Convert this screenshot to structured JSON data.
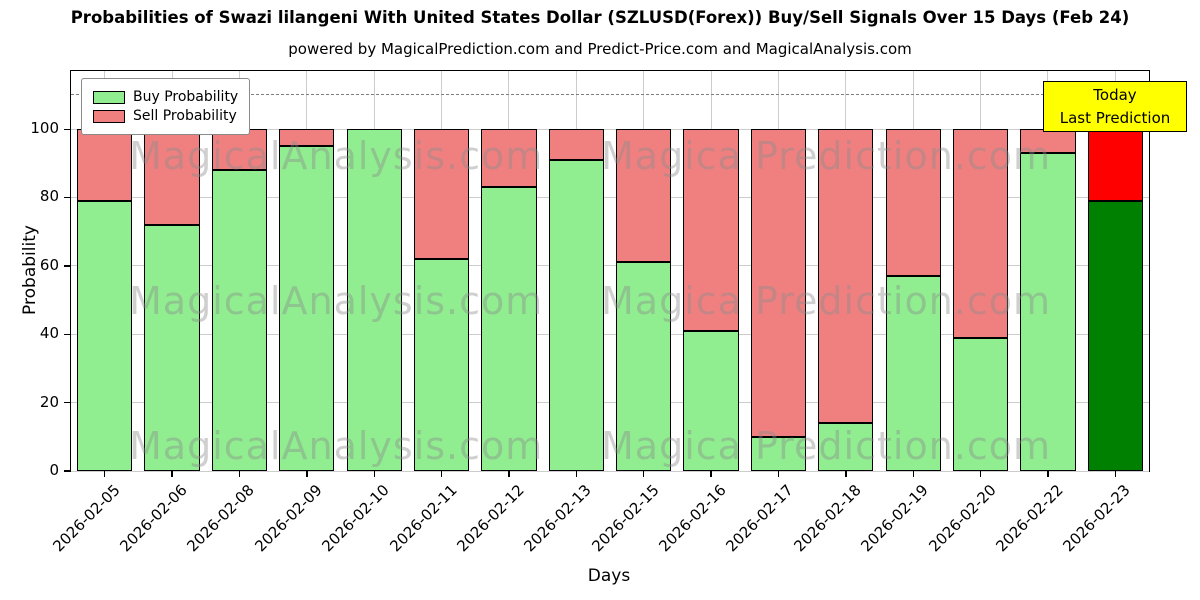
{
  "title": "Probabilities of Swazi lilangeni With United States Dollar (SZLUSD(Forex)) Buy/Sell Signals Over 15 Days (Feb 24)",
  "subtitle": "powered by MagicalPrediction.com and Predict-Price.com and MagicalAnalysis.com",
  "watermarks": {
    "left": "MagicalAnalysis.com",
    "right": "Magica Prediction.com"
  },
  "today_label": {
    "line1": "Today",
    "line2": "Last Prediction",
    "bg": "#ffff00"
  },
  "chart_data": {
    "type": "bar",
    "stacked": true,
    "title": "Probabilities of Swazi lilangeni With United States Dollar (SZLUSD(Forex)) Buy/Sell Signals Over 15 Days (Feb 24)",
    "xlabel": "Days",
    "ylabel": "Probability",
    "ylim": [
      0,
      117
    ],
    "yticks": [
      0,
      20,
      40,
      60,
      80,
      100
    ],
    "dashed_line_y": 110,
    "grid": true,
    "legend_position": "upper left",
    "bar_edge_color": "#000000",
    "categories": [
      "2026-02-05",
      "2026-02-06",
      "2026-02-08",
      "2026-02-09",
      "2026-02-10",
      "2026-02-11",
      "2026-02-12",
      "2026-02-13",
      "2026-02-15",
      "2026-02-16",
      "2026-02-17",
      "2026-02-18",
      "2026-02-19",
      "2026-02-20",
      "2026-02-22",
      "2026-02-23"
    ],
    "series": [
      {
        "name": "Buy Probability",
        "color": "#90EE90",
        "values": [
          79,
          72,
          88,
          95,
          100,
          62,
          83,
          91,
          61,
          41,
          10,
          14,
          57,
          39,
          93,
          79
        ]
      },
      {
        "name": "Sell Probability",
        "color": "#F08080",
        "values": [
          21,
          28,
          12,
          5,
          0,
          38,
          17,
          9,
          39,
          59,
          90,
          86,
          43,
          61,
          7,
          21
        ]
      }
    ],
    "today_colors": {
      "buy": "#008000",
      "sell": "#FF0000"
    }
  }
}
